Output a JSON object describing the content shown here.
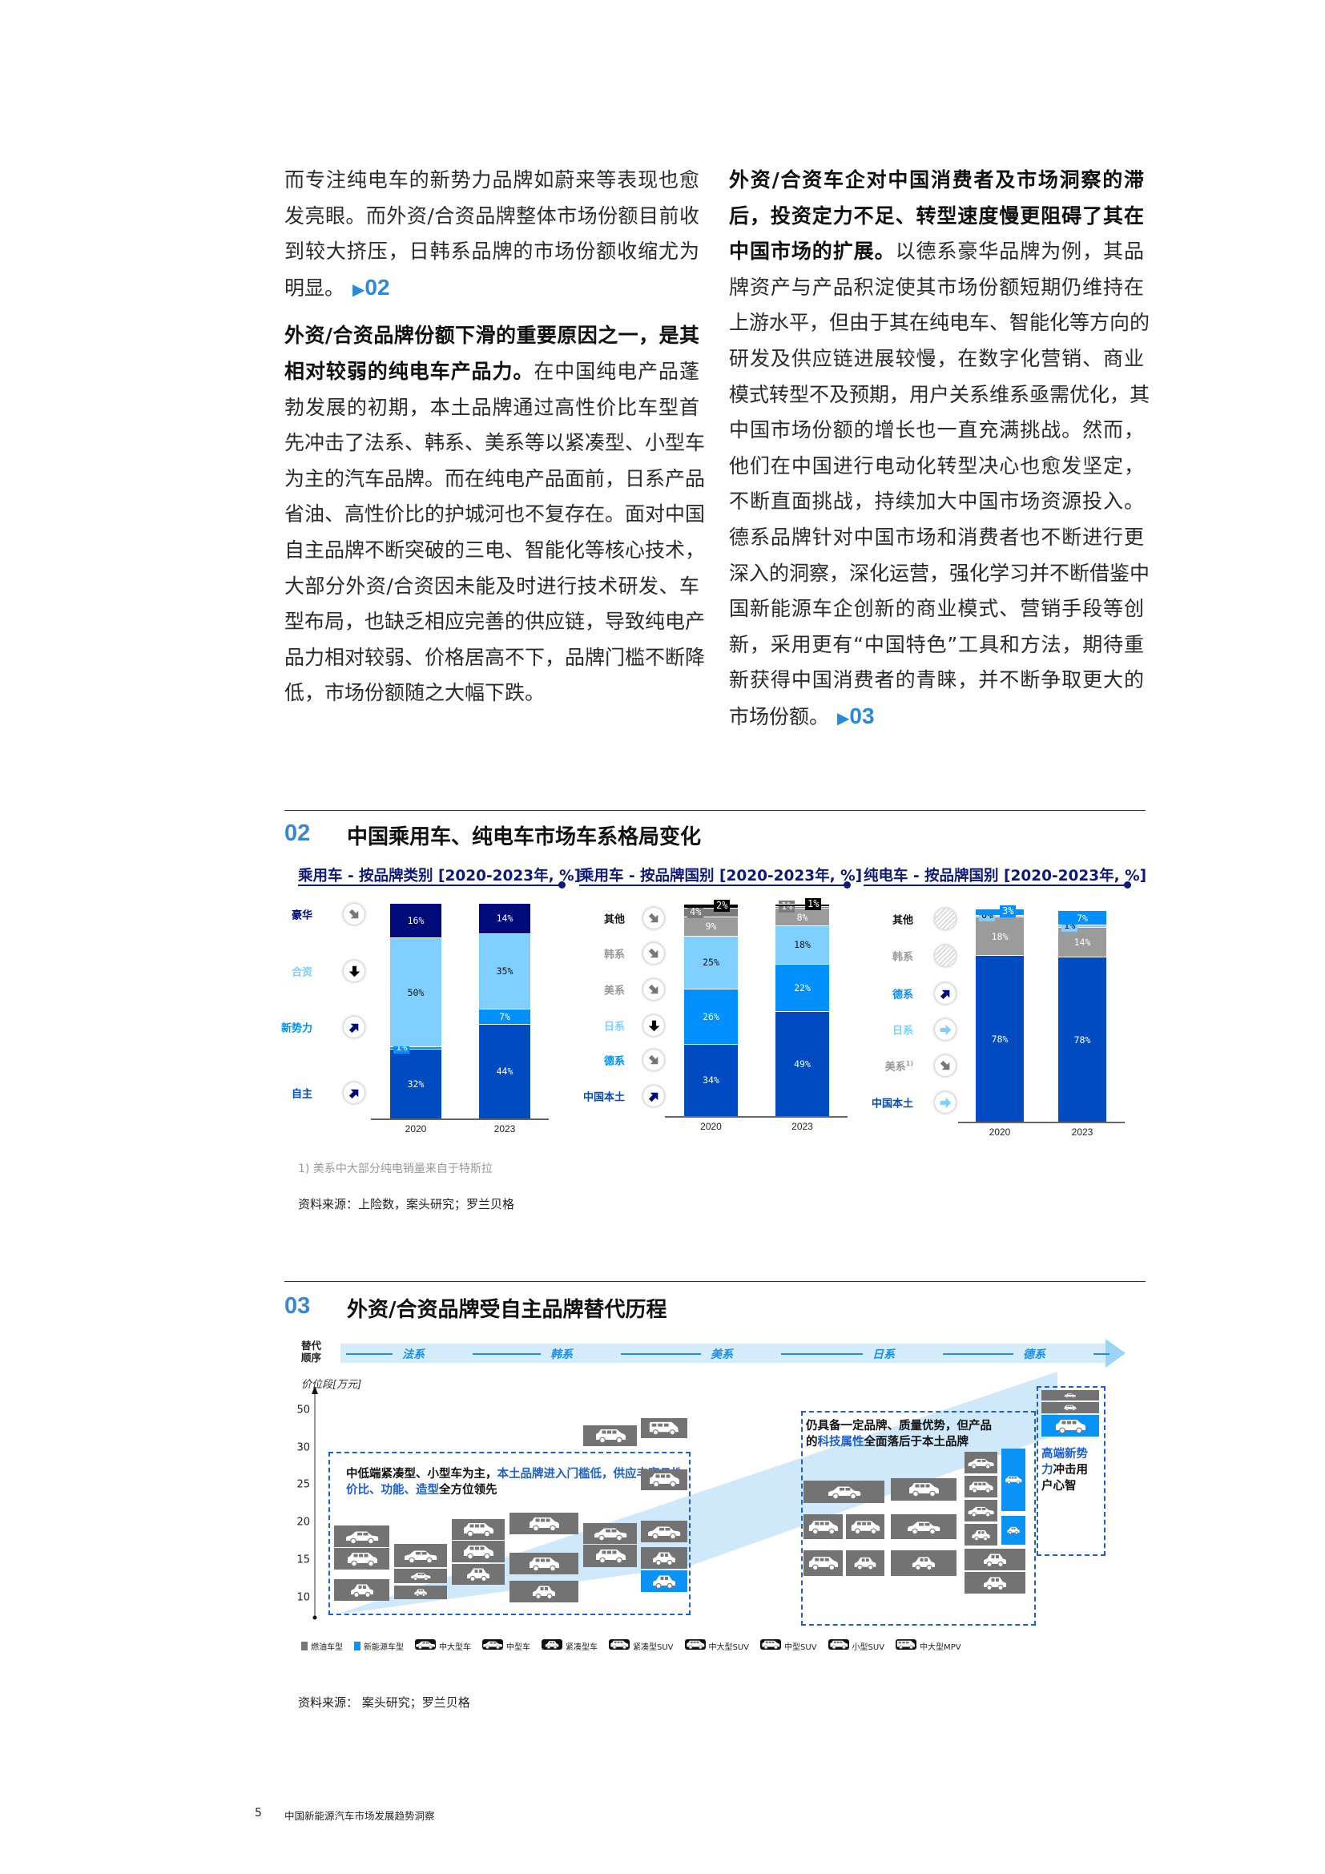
{
  "left_column": {
    "paragraphs": [
      [
        [
          {
            "text": "而专注纯电车的新势力品牌如蔚来等表现也愈",
            "style": "normal"
          }
        ],
        [
          {
            "text": "发亮眼。而外资/合资品牌整体市场份额目前收",
            "style": "normal"
          }
        ],
        [
          {
            "text": "到较大挤压，日韩系品牌的市场份额收缩尤为",
            "style": "normal"
          }
        ],
        [
          {
            "text": "明显。",
            "style": "normal"
          },
          {
            "text": "02",
            "style": "ref"
          }
        ]
      ],
      [
        [
          {
            "text": "外资/合资品牌份额下滑的重要原因之一，是其",
            "style": "bold"
          }
        ],
        [
          {
            "text": "相对较弱的纯电车产品力。",
            "style": "bold"
          },
          {
            "text": "在中国纯电产品蓬",
            "style": "normal"
          }
        ],
        [
          {
            "text": "勃发展的初期，本土品牌通过高性价比车型首",
            "style": "normal"
          }
        ],
        [
          {
            "text": "先冲击了法系、韩系、美系等以紧凑型、小型车",
            "style": "normal"
          }
        ],
        [
          {
            "text": "为主的汽车品牌。而在纯电产品面前，日系产品",
            "style": "normal"
          }
        ],
        [
          {
            "text": "省油、高性价比的护城河也不复存在。面对中国",
            "style": "normal"
          }
        ],
        [
          {
            "text": "自主品牌不断突破的三电、智能化等核心技术，",
            "style": "normal"
          }
        ],
        [
          {
            "text": "大部分外资/合资因未能及时进行技术研发、车",
            "style": "normal"
          }
        ],
        [
          {
            "text": "型布局，也缺乏相应完善的供应链，导致纯电产",
            "style": "normal"
          }
        ],
        [
          {
            "text": "品力相对较弱、价格居高不下，品牌门槛不断降",
            "style": "normal"
          }
        ],
        [
          {
            "text": "低，市场份额随之大幅下跌。",
            "style": "normal"
          }
        ]
      ]
    ]
  },
  "right_column": {
    "paragraphs": [
      [
        [
          {
            "text": "外资/合资车企对中国消费者及市场洞察的滞",
            "style": "bold"
          }
        ],
        [
          {
            "text": "后，投资定力不足、转型速度慢更阻碍了其在",
            "style": "bold"
          }
        ],
        [
          {
            "text": "中国市场的扩展。",
            "style": "bold"
          },
          {
            "text": "以德系豪华品牌为例，其品",
            "style": "normal"
          }
        ],
        [
          {
            "text": "牌资产与产品积淀使其市场份额短期仍维持在",
            "style": "normal"
          }
        ],
        [
          {
            "text": "上游水平，但由于其在纯电车、智能化等方向的",
            "style": "normal"
          }
        ],
        [
          {
            "text": "研发及供应链进展较慢，在数字化营销、商业",
            "style": "normal"
          }
        ],
        [
          {
            "text": "模式转型不及预期，用户关系维系亟需优化，其",
            "style": "normal"
          }
        ],
        [
          {
            "text": "中国市场份额的增长也一直充满挑战。然而，",
            "style": "normal"
          }
        ],
        [
          {
            "text": "他们在中国进行电动化转型决心也愈发坚定，",
            "style": "normal"
          }
        ],
        [
          {
            "text": "不断直面挑战，持续加大中国市场资源投入。",
            "style": "normal"
          }
        ],
        [
          {
            "text": "德系品牌针对中国市场和消费者也不断进行更",
            "style": "normal"
          }
        ],
        [
          {
            "text": "深入的洞察，深化运营，强化学习并不断借鉴中",
            "style": "normal"
          }
        ],
        [
          {
            "text": "国新能源车企创新的商业模式、营销手段等创",
            "style": "normal"
          }
        ],
        [
          {
            "text": "新，采用更有“中国特色”工具和方法，期待重",
            "style": "normal"
          }
        ],
        [
          {
            "text": "新获得中国消费者的青睐，并不断争取更大的",
            "style": "normal"
          }
        ],
        [
          {
            "text": "市场份额。",
            "style": "normal"
          },
          {
            "text": "03",
            "style": "ref"
          }
        ]
      ]
    ]
  },
  "exhibit_02": {
    "number": "02",
    "title": "中国乘用车、纯电车市场车系格局变化",
    "footnote": "1) 美系中大部分纯电销量来自于特斯拉",
    "source": "资料来源：上险数，案头研究；罗兰贝格"
  },
  "colors": {
    "navy": "#000a78",
    "royal": "#004bc2",
    "bright_blue": "#0091ff",
    "light_blue": "#7fcfff",
    "grey": "#9b9b9b",
    "dark_grey": "#7a7a7a",
    "black": "#000000",
    "accent": "#3a86d1"
  },
  "chart_data": [
    {
      "type": "bar",
      "stacked": true,
      "title": "乘用车 - 按品牌类别 [2020-2023年, %]",
      "categories": [
        "2020",
        "2023"
      ],
      "series": [
        {
          "name": "自主",
          "values": [
            32,
            44
          ],
          "color": "#004bc2",
          "trend": "up-right"
        },
        {
          "name": "新势力",
          "values": [
            1,
            7
          ],
          "color": "#0091ff",
          "trend": "up-right"
        },
        {
          "name": "合资",
          "values": [
            50,
            35
          ],
          "color": "#7fcfff",
          "trend": "down"
        },
        {
          "name": "豪华",
          "values": [
            16,
            14
          ],
          "color": "#000a78",
          "trend": "down-right"
        }
      ]
    },
    {
      "type": "bar",
      "stacked": true,
      "title": "乘用车 - 按品牌国别 [2020-2023年, %]",
      "categories": [
        "2020",
        "2023"
      ],
      "series": [
        {
          "name": "中国本土",
          "values": [
            34,
            49
          ],
          "color": "#004bc2",
          "trend": "up-right"
        },
        {
          "name": "德系",
          "values": [
            26,
            22
          ],
          "color": "#0091ff",
          "trend": "down-right"
        },
        {
          "name": "日系",
          "values": [
            25,
            18
          ],
          "color": "#7fcfff",
          "trend": "down"
        },
        {
          "name": "美系",
          "values": [
            9,
            8
          ],
          "color": "#9b9b9b",
          "trend": "down-right"
        },
        {
          "name": "韩系",
          "values": [
            4,
            1
          ],
          "color": "#7a7a7a",
          "trend": "down-right"
        },
        {
          "name": "其他",
          "values": [
            2,
            1
          ],
          "color": "#000000",
          "trend": "down-right"
        }
      ]
    },
    {
      "type": "bar",
      "stacked": true,
      "title": "纯电车 - 按品牌国别 [2020-2023年, %]",
      "categories": [
        "2020",
        "2023"
      ],
      "series": [
        {
          "name": "中国本土",
          "values": [
            78,
            78
          ],
          "color": "#004bc2",
          "trend": "right"
        },
        {
          "name": "美系",
          "sup": "1)",
          "values": [
            18,
            14
          ],
          "color": "#9b9b9b",
          "trend": "down-right"
        },
        {
          "name": "日系",
          "values": [
            0,
            1
          ],
          "color": "#7fcfff",
          "trend": "right"
        },
        {
          "name": "德系",
          "values": [
            3,
            7
          ],
          "color": "#0091ff",
          "trend": "up-right"
        },
        {
          "name": "韩系",
          "values": [
            null,
            null
          ],
          "color": "#7a7a7a",
          "trend": "none"
        },
        {
          "name": "其他",
          "values": [
            null,
            null
          ],
          "color": "#000000",
          "trend": "none"
        }
      ]
    }
  ],
  "exhibit_03": {
    "number": "03",
    "title": "外资/合资品牌受自主品牌替代历程",
    "order_label": [
      "替代",
      "顺序"
    ],
    "sequence": [
      "法系",
      "韩系",
      "美系",
      "日系",
      "德系"
    ],
    "y_axis_label": "价位段[万元]",
    "y_ticks": [
      "50",
      "30",
      "25",
      "20",
      "15",
      "10"
    ],
    "annotation_1": {
      "black1": "中低端紧凑型、小型车为主，",
      "blue1": "本土品牌进入门槛低，供应丰富且性",
      "blue2": "价比、功能、造型",
      "black2": "全方位领先"
    },
    "annotation_2": {
      "line1": "仍具备一定品牌、质量优势，但产品",
      "pre": "的",
      "blue": "科技属性",
      "post": "全面落后于本土品牌"
    },
    "annotation_3": {
      "blue": "高端新势",
      "blue2": "力",
      "black": "冲击用",
      "black2": "户心智"
    },
    "legend": [
      {
        "label": "燃油车型",
        "icon": "fuel-swatch"
      },
      {
        "label": "新能源车型",
        "icon": "nev-swatch"
      },
      {
        "label": "中大型车",
        "icon": "sedan"
      },
      {
        "label": "中型车",
        "icon": "sedan"
      },
      {
        "label": "紧凑型车",
        "icon": "compact"
      },
      {
        "label": "紧凑型SUV",
        "icon": "suv"
      },
      {
        "label": "中大型SUV",
        "icon": "suv"
      },
      {
        "label": "中型SUV",
        "icon": "suv"
      },
      {
        "label": "小型SUV",
        "icon": "suv"
      },
      {
        "label": "中大型MPV",
        "icon": "mpv"
      }
    ],
    "boxes": [
      {
        "energy": "fuel",
        "model": "sedan"
      },
      {
        "energy": "fuel",
        "model": "suv"
      },
      {
        "energy": "fuel",
        "model": "compact"
      },
      {
        "energy": "fuel",
        "model": "sedan"
      },
      {
        "energy": "fuel",
        "model": "sedan"
      },
      {
        "energy": "fuel",
        "model": "compact"
      },
      {
        "energy": "fuel",
        "model": "suv"
      },
      {
        "energy": "fuel",
        "model": "suv"
      },
      {
        "energy": "fuel",
        "model": "compact"
      },
      {
        "energy": "fuel",
        "model": "suv"
      },
      {
        "energy": "fuel",
        "model": "suv"
      },
      {
        "energy": "fuel",
        "model": "compact"
      },
      {
        "energy": "fuel",
        "model": "sedan"
      },
      {
        "energy": "fuel",
        "model": "suv"
      },
      {
        "energy": "fuel",
        "model": "sedan"
      },
      {
        "energy": "fuel",
        "model": "compact"
      },
      {
        "energy": "nev",
        "model": "compact"
      },
      {
        "energy": "fuel",
        "model": "suv"
      },
      {
        "energy": "fuel",
        "model": "mpv"
      },
      {
        "energy": "fuel",
        "model": "suv"
      },
      {
        "energy": "fuel",
        "model": "sedan"
      },
      {
        "energy": "fuel",
        "model": "suv"
      },
      {
        "energy": "fuel",
        "model": "suv"
      },
      {
        "energy": "fuel",
        "model": "suv"
      },
      {
        "energy": "fuel",
        "model": "sedan"
      },
      {
        "energy": "fuel",
        "model": "suv"
      },
      {
        "energy": "fuel",
        "model": "compact"
      },
      {
        "energy": "fuel",
        "model": "compact"
      },
      {
        "energy": "fuel",
        "model": "sedan"
      },
      {
        "energy": "fuel",
        "model": "suv"
      },
      {
        "energy": "fuel",
        "model": "sedan"
      },
      {
        "energy": "fuel",
        "model": "compact"
      },
      {
        "energy": "nev",
        "model": "suv"
      },
      {
        "energy": "nev",
        "model": "compact"
      },
      {
        "energy": "fuel",
        "model": "compact"
      },
      {
        "energy": "fuel",
        "model": "compact"
      },
      {
        "energy": "fuel",
        "model": "sedan"
      },
      {
        "energy": "fuel",
        "model": "suv"
      },
      {
        "energy": "nev",
        "model": "suv"
      }
    ],
    "source": "资料来源：  案头研究；罗兰贝格"
  },
  "footer": {
    "page_number": "5",
    "title": "中国新能源汽车市场发展趋势洞察"
  }
}
